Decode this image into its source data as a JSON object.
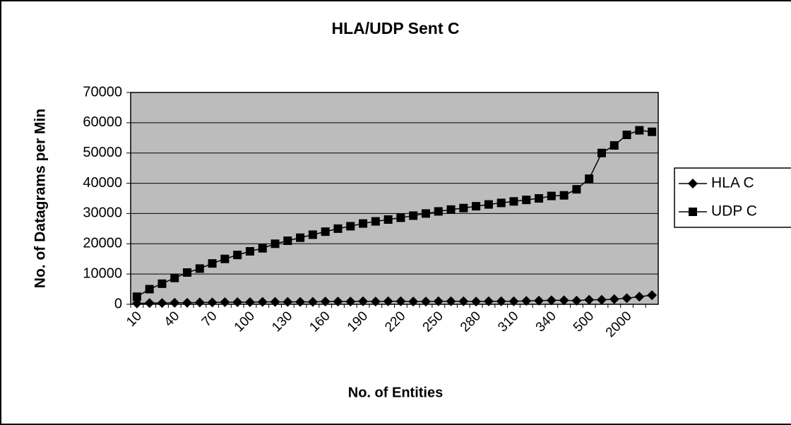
{
  "chart_data": {
    "type": "line",
    "title": "HLA/UDP Sent C",
    "x_label": "No. of Entities",
    "y_label": "No. of Datagrams per Min",
    "categories": [
      "10",
      null,
      null,
      "40",
      null,
      null,
      "70",
      null,
      null,
      "100",
      null,
      null,
      "130",
      null,
      null,
      "160",
      null,
      null,
      "190",
      null,
      null,
      "220",
      null,
      null,
      "250",
      null,
      null,
      "280",
      null,
      null,
      "310",
      null,
      null,
      "340",
      null,
      null,
      "500",
      null,
      null,
      "2000",
      null,
      null
    ],
    "series": [
      {
        "name": "HLA C",
        "color": "#000000",
        "marker": "diamond",
        "values": [
          300,
          400,
          400,
          500,
          500,
          600,
          600,
          700,
          700,
          700,
          800,
          800,
          800,
          800,
          800,
          900,
          900,
          900,
          1000,
          900,
          1000,
          1000,
          900,
          900,
          1000,
          1000,
          1000,
          900,
          1000,
          1000,
          1000,
          1100,
          1200,
          1300,
          1300,
          1200,
          1500,
          1500,
          1700,
          2000,
          2500,
          3000
        ]
      },
      {
        "name": "UDP C",
        "color": "#000000",
        "marker": "square",
        "values": [
          2500,
          5000,
          6800,
          8700,
          10500,
          11800,
          13500,
          15000,
          16300,
          17500,
          18500,
          20000,
          21000,
          22000,
          23000,
          24000,
          25000,
          25800,
          26700,
          27400,
          28000,
          28600,
          29300,
          30000,
          30700,
          31300,
          31800,
          32400,
          33000,
          33500,
          34000,
          34500,
          35000,
          35800,
          36000,
          38000,
          41500,
          50000,
          52500,
          56000,
          57500,
          57000
        ]
      }
    ],
    "ylim": [
      0,
      70000
    ],
    "yticks": [
      0,
      10000,
      20000,
      30000,
      40000,
      50000,
      60000,
      70000
    ],
    "grid": true,
    "legend": "right"
  }
}
